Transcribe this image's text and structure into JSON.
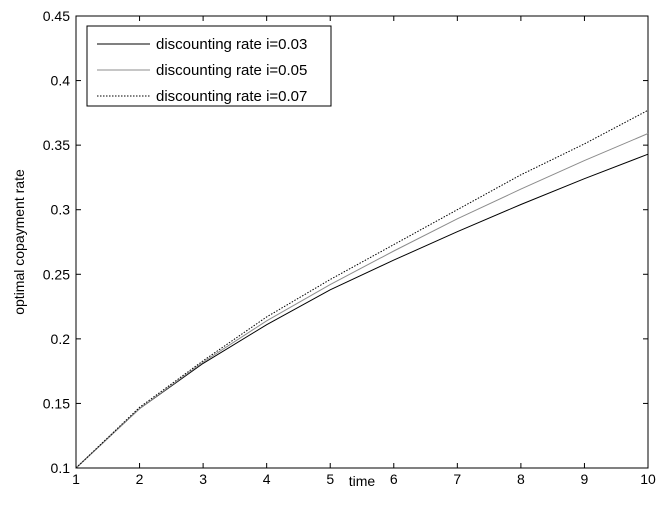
{
  "chart_data": {
    "type": "line",
    "xlabel": "time",
    "ylabel": "optimal copayment rate",
    "xlim": [
      1,
      10
    ],
    "ylim": [
      0.1,
      0.45
    ],
    "xticks": [
      1,
      2,
      3,
      4,
      5,
      6,
      7,
      8,
      9,
      10
    ],
    "yticks": [
      0.1,
      0.15,
      0.2,
      0.25,
      0.3,
      0.35,
      0.4,
      0.45
    ],
    "xtick_labels": [
      "1",
      "2",
      "3",
      "4",
      "5",
      "6",
      "7",
      "8",
      "9",
      "10"
    ],
    "ytick_labels": [
      "0.1",
      "0.15",
      "0.2",
      "0.25",
      "0.3",
      "0.35",
      "0.4",
      "0.45"
    ],
    "grid": false,
    "legend_position": "top-left",
    "x": [
      1,
      2,
      3,
      4,
      5,
      6,
      7,
      8,
      9,
      10
    ],
    "series": [
      {
        "name": "discounting rate i=0.03",
        "color": "#000000",
        "dash": "solid",
        "values": [
          0.1,
          0.146,
          0.181,
          0.211,
          0.238,
          0.261,
          0.283,
          0.304,
          0.324,
          0.343
        ]
      },
      {
        "name": "discounting rate i=0.05",
        "color": "#8c8c8c",
        "dash": "solid",
        "values": [
          0.1,
          0.146,
          0.182,
          0.214,
          0.242,
          0.268,
          0.293,
          0.316,
          0.338,
          0.359
        ]
      },
      {
        "name": "discounting rate i=0.07",
        "color": "#000000",
        "dash": "dotted",
        "values": [
          0.1,
          0.147,
          0.183,
          0.217,
          0.246,
          0.273,
          0.3,
          0.327,
          0.351,
          0.377
        ]
      }
    ]
  }
}
